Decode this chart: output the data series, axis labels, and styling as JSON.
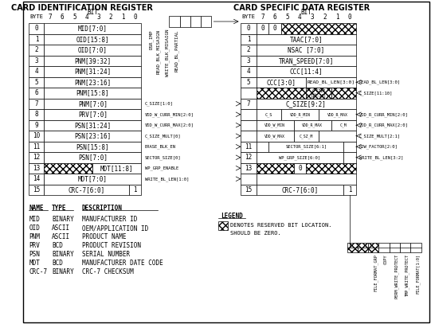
{
  "title_left": "CARD IDENTIFICATION REGISTER",
  "title_right": "CARD SPECIFIC DATA REGISTER",
  "bg_color": "#ffffff",
  "font_size": 5.5,
  "title_font_size": 7.0,
  "cid_rows": [
    "MID[7:0]",
    "OID[15:8]",
    "OID[7:0]",
    "PNM[39:32]",
    "PNM[31:24]",
    "PNM[23:16]",
    "PNM[15:8]",
    "PNM[7:0]",
    "PRV[7:0]",
    "PSN[31:24]",
    "PSN[23:16]",
    "PSN[15:8]",
    "PSN[7:0]",
    "MDT[11:8]",
    "MDT[7:0]",
    "CRC-7[6:0]"
  ],
  "name_table": [
    [
      "MID",
      "BINARY",
      "MANUFACTURER ID"
    ],
    [
      "OID",
      "ASCII",
      "OEM/APPLICATION ID"
    ],
    [
      "PNM",
      "ASCII",
      "PRODUCT NAME"
    ],
    [
      "PRV",
      "BCD",
      "PRODUCT REVISION"
    ],
    [
      "PSN",
      "BINARY",
      "SERIAL NUMBER"
    ],
    [
      "MDT",
      "BCD",
      "MANUFACTURER DATE CODE"
    ],
    [
      "CRC-7",
      "BINARY",
      "CRC-7 CHECKSUM"
    ]
  ],
  "middle_vtexts": [
    "DSR_IMP",
    "READ_BLK_MISAIGN",
    "WRITE_BLK_MISAIGN",
    "READ_BL_PARTIAL"
  ],
  "left_arrow_labels": [
    "C_SIZE[1:0]",
    "VDD_W_CURR_MIN[2:0]",
    "VDD_W_CURR_MAX[2:0]",
    "C_SIZE_MULT[0]",
    "ERASE_BLK_EN",
    "SECTOR_SIZE[0]",
    "WP_GRP_ENABLE",
    "WRITE_BL_LEN[1:0]"
  ],
  "right_labels": [
    "READ_BL_LEN[3:0]",
    "C_SIZE[11:10]",
    "VDD_R_CURR_MIN[2:0]",
    "VDD_R_CURR_MAX[2:0]",
    "C_SIZE_MULT[2:1]",
    "R2W_FACTOR[2:0]",
    "WRITE_BL_LEN[3:2]"
  ],
  "scr_labels": [
    "FILE_FORMAT[1:0]",
    "TMP_WRITE_PROTECT",
    "PERM_WRITE_PROTECT",
    "COPY",
    "FILE_FORMAT_GRP"
  ]
}
